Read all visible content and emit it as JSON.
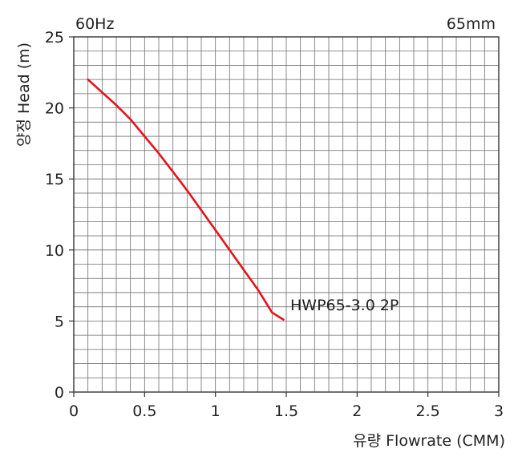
{
  "chart_data": {
    "type": "line",
    "title": "",
    "corner_left": "60Hz",
    "corner_right": "65mm",
    "xlabel": "유량 Flowrate (CMM)",
    "ylabel": "양정 Head (m)",
    "xlim": [
      0,
      3
    ],
    "ylim": [
      0,
      25
    ],
    "x_major_ticks": [
      0,
      0.5,
      1,
      1.5,
      2,
      2.5,
      3
    ],
    "x_tick_labels": [
      "0",
      "0.5",
      "1",
      "1.5",
      "2",
      "2.5",
      "3"
    ],
    "y_major_ticks": [
      0,
      5,
      10,
      15,
      20,
      25
    ],
    "y_tick_labels": [
      "0",
      "5",
      "10",
      "15",
      "20",
      "25"
    ],
    "x_minor_step": 0.1,
    "y_minor_step": 1,
    "grid": true,
    "series": [
      {
        "name": "HWP65-3.0 2P",
        "color": "#e3141c",
        "x": [
          0.1,
          0.2,
          0.3,
          0.4,
          0.5,
          0.6,
          0.7,
          0.8,
          0.9,
          1.0,
          1.1,
          1.2,
          1.3,
          1.4,
          1.48
        ],
        "y": [
          22.0,
          21.1,
          20.2,
          19.2,
          18.0,
          16.8,
          15.5,
          14.2,
          12.8,
          11.4,
          10.0,
          8.6,
          7.2,
          5.6,
          5.1
        ]
      }
    ],
    "series_label": "HWP65-3.0 2P"
  }
}
